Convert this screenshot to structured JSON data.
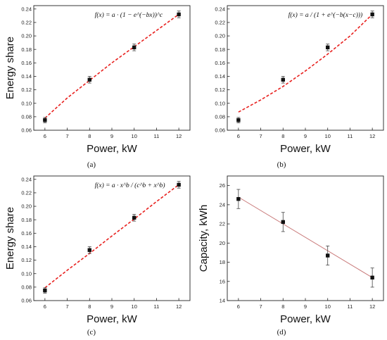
{
  "chart_data": [
    {
      "id": "a",
      "type": "scatter",
      "caption": "(a)",
      "formula": "f(x) = a · (1 − e^(−bx))^c",
      "xlabel": "Power, kW",
      "ylabel": "Energy share",
      "xlim": [
        5.5,
        12.5
      ],
      "ylim": [
        0.06,
        0.245
      ],
      "xticks": [
        "6",
        "7",
        "8",
        "9",
        "10",
        "11",
        "12"
      ],
      "yticks": [
        "0.06",
        "0.08",
        "0.10",
        "0.12",
        "0.14",
        "0.16",
        "0.18",
        "0.20",
        "0.22",
        "0.24"
      ],
      "points": {
        "x": [
          6,
          8,
          10,
          12
        ],
        "y": [
          0.075,
          0.135,
          0.183,
          0.232
        ],
        "err": [
          0.004,
          0.005,
          0.005,
          0.005
        ]
      },
      "fit": {
        "style": "dashed",
        "color": "#e8201e",
        "x": [
          6,
          7,
          8,
          9,
          10,
          11,
          12
        ],
        "y": [
          0.078,
          0.108,
          0.134,
          0.16,
          0.184,
          0.208,
          0.232
        ]
      }
    },
    {
      "id": "b",
      "type": "scatter",
      "caption": "(b)",
      "formula": "f(x) = a / (1 + e^(−b(x−c)))",
      "xlabel": "Power, kW",
      "ylabel": "",
      "xlim": [
        5.5,
        12.5
      ],
      "ylim": [
        0.06,
        0.245
      ],
      "xticks": [
        "6",
        "7",
        "8",
        "9",
        "10",
        "11",
        "12"
      ],
      "yticks": [
        "0.06",
        "0.08",
        "0.10",
        "0.12",
        "0.14",
        "0.16",
        "0.18",
        "0.20",
        "0.22",
        "0.24"
      ],
      "points": {
        "x": [
          6,
          8,
          10,
          12
        ],
        "y": [
          0.075,
          0.135,
          0.183,
          0.232
        ],
        "err": [
          0.004,
          0.005,
          0.005,
          0.005
        ]
      },
      "fit": {
        "style": "dashed",
        "color": "#e8201e",
        "x": [
          6,
          7,
          8,
          9,
          10,
          11,
          12
        ],
        "y": [
          0.087,
          0.105,
          0.125,
          0.148,
          0.173,
          0.2,
          0.232
        ]
      }
    },
    {
      "id": "c",
      "type": "scatter",
      "caption": "(c)",
      "formula": "f(x) = a · x^b / (c^b + x^b)",
      "xlabel": "Power, kW",
      "ylabel": "Energy share",
      "xlim": [
        5.5,
        12.5
      ],
      "ylim": [
        0.06,
        0.245
      ],
      "xticks": [
        "6",
        "7",
        "8",
        "9",
        "10",
        "11",
        "12"
      ],
      "yticks": [
        "0.06",
        "0.08",
        "0.10",
        "0.12",
        "0.14",
        "0.16",
        "0.18",
        "0.20",
        "0.22",
        "0.24"
      ],
      "points": {
        "x": [
          6,
          8,
          10,
          12
        ],
        "y": [
          0.075,
          0.135,
          0.183,
          0.232
        ],
        "err": [
          0.004,
          0.005,
          0.005,
          0.005
        ]
      },
      "fit": {
        "style": "dashed",
        "color": "#e8201e",
        "x": [
          6,
          7,
          8,
          9,
          10,
          11,
          12
        ],
        "y": [
          0.079,
          0.105,
          0.13,
          0.156,
          0.181,
          0.207,
          0.232
        ]
      }
    },
    {
      "id": "d",
      "type": "scatter",
      "caption": "(d)",
      "formula": "",
      "xlabel": "Power, kW",
      "ylabel": "Capacity, kWh",
      "xlim": [
        5.5,
        12.5
      ],
      "ylim": [
        14,
        27
      ],
      "xticks": [
        "6",
        "7",
        "8",
        "9",
        "10",
        "11",
        "12"
      ],
      "yticks": [
        "14",
        "16",
        "18",
        "20",
        "22",
        "24",
        "26"
      ],
      "points": {
        "x": [
          6,
          8,
          10,
          12
        ],
        "y": [
          24.6,
          22.2,
          18.7,
          16.4
        ],
        "err": [
          1.0,
          1.0,
          1.0,
          1.0
        ]
      },
      "fit": {
        "style": "solid",
        "color": "#c97a7a",
        "x": [
          6,
          12
        ],
        "y": [
          24.8,
          16.4
        ]
      }
    }
  ]
}
